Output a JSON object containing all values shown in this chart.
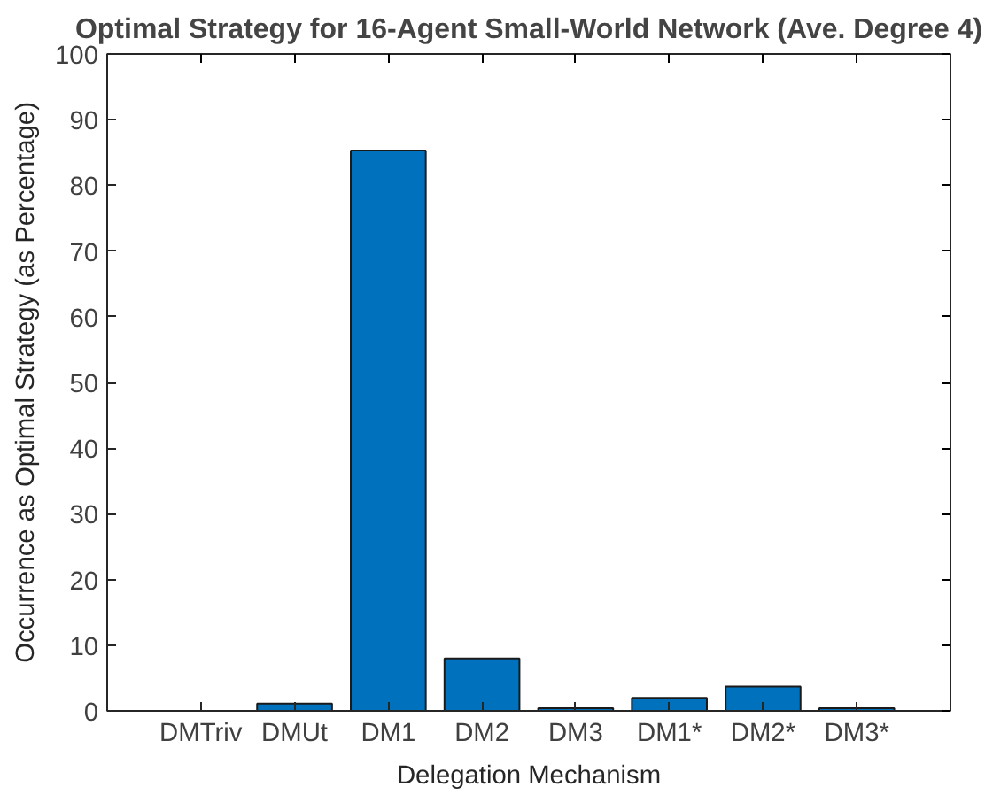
{
  "chart_data": {
    "type": "bar",
    "title": "Optimal Strategy for 16-Agent Small-World Network (Ave. Degree 4)",
    "xlabel": "Delegation Mechanism",
    "ylabel": "Occurrence as Optimal Strategy (as Percentage)",
    "categories": [
      "DMTriv",
      "DMUt",
      "DM1",
      "DM2",
      "DM3",
      "DM1*",
      "DM2*",
      "DM3*"
    ],
    "values": [
      0,
      1.1,
      85.3,
      8.0,
      0.4,
      2.0,
      3.7,
      0.4
    ],
    "color": "#0072bd",
    "ylim": [
      0,
      100
    ],
    "yticks": [
      0,
      10,
      20,
      30,
      40,
      50,
      60,
      70,
      80,
      90,
      100
    ],
    "grid": false
  }
}
